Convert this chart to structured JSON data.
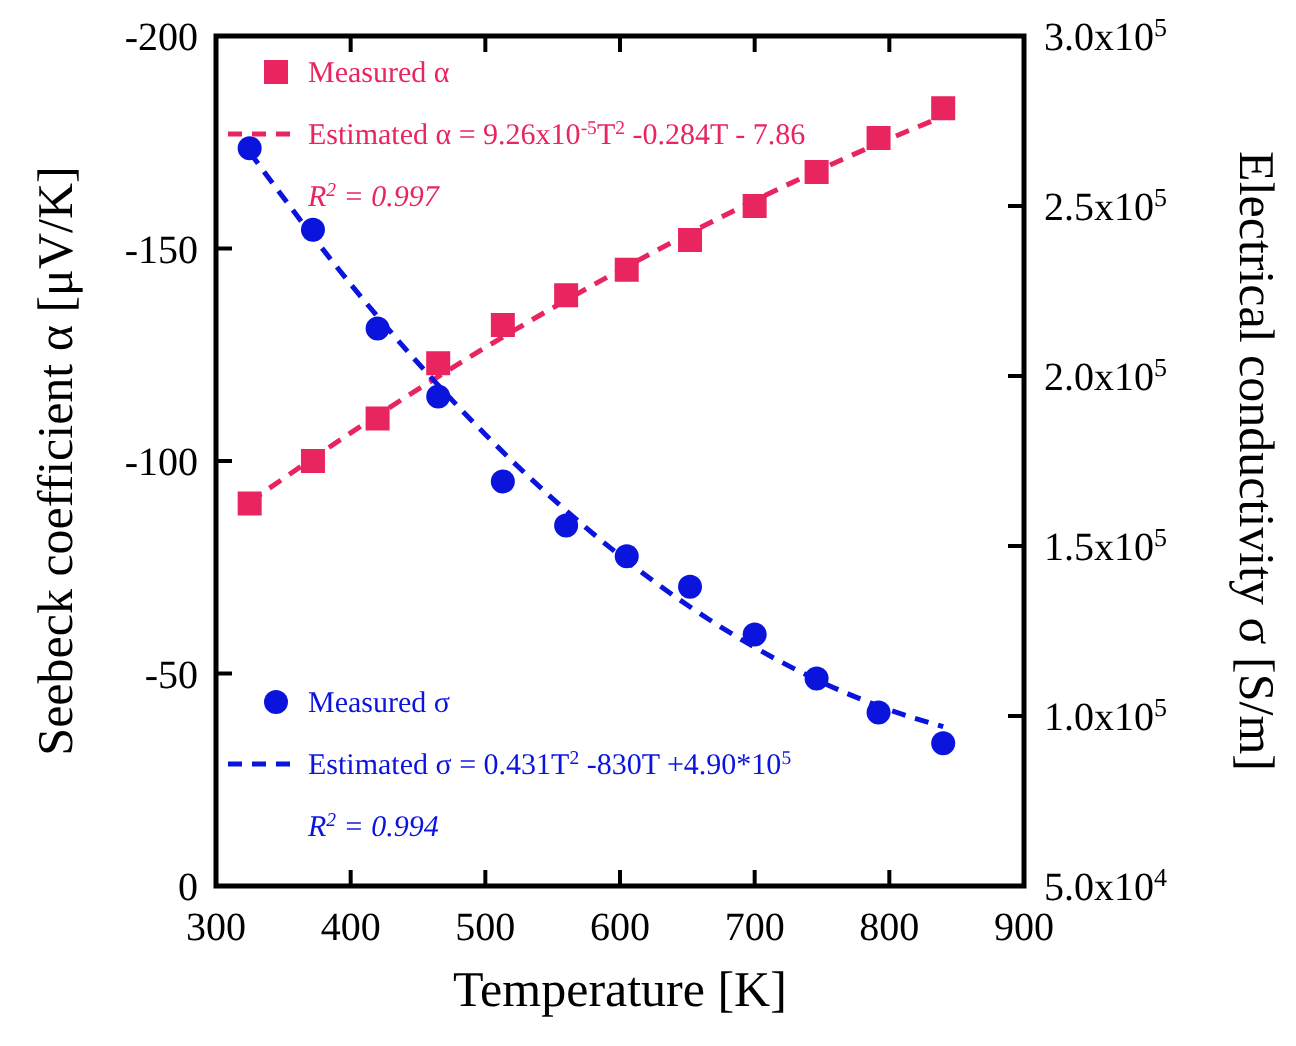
{
  "chart_data": {
    "type": "scatter",
    "xlabel": "Temperature [K]",
    "ylabel": "Seebeck coefficient α [μV/K]",
    "y2label": "Electrical conductivity σ [S/m]",
    "xlim": [
      300,
      900
    ],
    "xticks": [
      300,
      400,
      500,
      600,
      700,
      800,
      900
    ],
    "ylim": [
      0,
      -200
    ],
    "yticks": [
      0,
      -50,
      -100,
      -150,
      -200
    ],
    "y2lim": [
      50000,
      300000
    ],
    "y2ticks": [
      {
        "value": 50000,
        "label": "5.0x10$^{4}$"
      },
      {
        "value": 100000,
        "label": "1.0x10$^{5}$"
      },
      {
        "value": 150000,
        "label": "1.5x10$^{5}$"
      },
      {
        "value": 200000,
        "label": "2.0x10$^{5}$"
      },
      {
        "value": 250000,
        "label": "2.5x10$^{5}$"
      },
      {
        "value": 300000,
        "label": "3.0x10$^{5}$"
      }
    ],
    "grid": false,
    "legend": "top left",
    "annotations": [
      "R$^{2}$ = 0.997",
      "R$^{2}$ = 0.994"
    ],
    "series": [
      {
        "name": "Measured α",
        "marker": "square",
        "color": "#e8255f",
        "x": [
          325,
          372,
          420,
          465,
          513,
          560,
          605,
          652,
          700,
          746,
          792,
          840
        ],
        "values": [
          -90,
          -100,
          -110,
          -123,
          -132,
          -139,
          -145,
          -152,
          -160,
          -168,
          -176,
          -183
        ]
      },
      {
        "name": "Estimated α = 9.26x10$^{-5}$T$^{2}$ -0.284T - 7.86",
        "type": "line",
        "marker": "none",
        "line_style": "dashed",
        "color": "#e8255f",
        "x": [
          325,
          400,
          500,
          600,
          700,
          800,
          840
        ],
        "values": [
          -90.4,
          -106.6,
          -126.7,
          -144.9,
          -161.3,
          -175.8,
          -181.1
        ]
      },
      {
        "name": "Measured σ",
        "marker": "circle",
        "axis": "y2",
        "color": "#0a14dc",
        "x": [
          325,
          372,
          420,
          465,
          513,
          560,
          605,
          652,
          700,
          746,
          792,
          840
        ],
        "values": [
          267000,
          243000,
          214000,
          194000,
          169000,
          156000,
          147000,
          138000,
          124000,
          111000,
          101000,
          92000
        ]
      },
      {
        "name": "Estimated σ = 0.431T$^{2}$ -830T +4.90*10$^{5}$",
        "type": "line",
        "marker": "none",
        "line_style": "dashed",
        "axis": "y2",
        "color": "#0a14dc",
        "x": [
          325,
          400,
          500,
          600,
          700,
          800,
          840
        ],
        "values": [
          265800,
          227000,
          182800,
          147200,
          120200,
          101800,
          96900
        ]
      }
    ]
  }
}
